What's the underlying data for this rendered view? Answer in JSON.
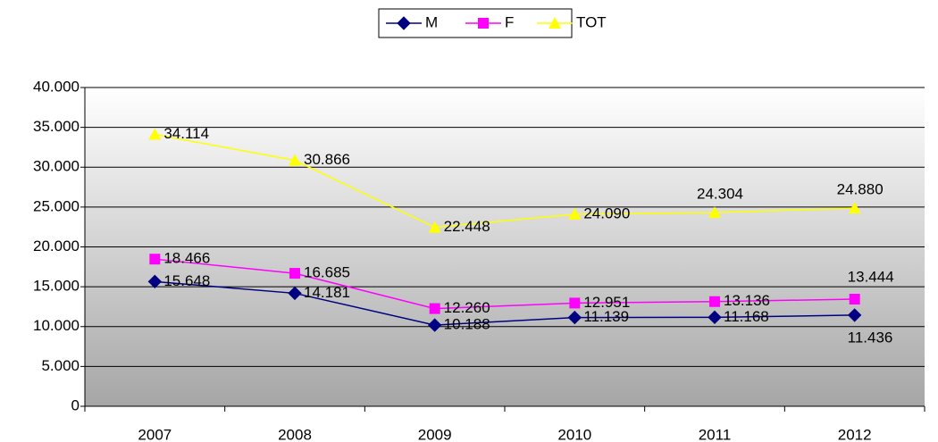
{
  "chart_data": {
    "type": "line",
    "categories": [
      "2007",
      "2008",
      "2009",
      "2010",
      "2011",
      "2012"
    ],
    "series": [
      {
        "name": "M",
        "color": "#000080",
        "marker": "diamond",
        "values": [
          15648,
          14181,
          10188,
          11139,
          11168,
          11436
        ],
        "value_labels": [
          "15.648",
          "14.181",
          "10.188",
          "11.139",
          "11.168",
          "11.436"
        ]
      },
      {
        "name": "F",
        "color": "#ff00ff",
        "marker": "square",
        "values": [
          18466,
          16685,
          12260,
          12951,
          13136,
          13444
        ],
        "value_labels": [
          "18.466",
          "16.685",
          "12.260",
          "12.951",
          "13.136",
          "13.444"
        ]
      },
      {
        "name": "TOT",
        "color": "#ffff00",
        "marker": "triangle",
        "values": [
          34114,
          30866,
          22448,
          24090,
          24304,
          24880
        ],
        "value_labels": [
          "34.114",
          "30.866",
          "22.448",
          "24.090",
          "24.304",
          "24.880"
        ]
      }
    ],
    "ylim": [
      0,
      40000
    ],
    "yticks": [
      0,
      {
        "value": 5000,
        "label": "5.000"
      },
      {
        "value": 10000,
        "label": "10.000"
      },
      {
        "value": 15000,
        "label": "15.000"
      },
      {
        "value": 20000,
        "label": "20.000"
      },
      {
        "value": 25000,
        "label": "25.000"
      },
      {
        "value": 30000,
        "label": "30.000"
      },
      {
        "value": 35000,
        "label": "35.000"
      },
      {
        "value": 40000,
        "label": "40.000"
      }
    ],
    "grid": true,
    "legend": "top"
  }
}
